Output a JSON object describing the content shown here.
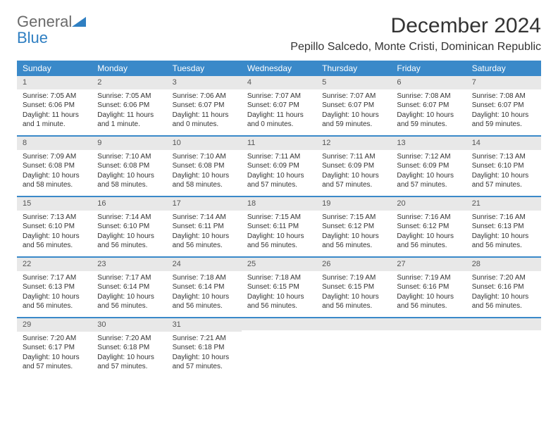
{
  "logo": {
    "general": "General",
    "blue": "Blue"
  },
  "title": "December 2024",
  "location": "Pepillo Salcedo, Monte Cristi, Dominican Republic",
  "colors": {
    "header_bg": "#3a89c9",
    "header_text": "#ffffff",
    "daynum_bg": "#e8e8e8",
    "week_border": "#3a89c9",
    "text": "#333333",
    "logo_gray": "#6a6a6a",
    "logo_blue": "#2f7fc2"
  },
  "dayNames": [
    "Sunday",
    "Monday",
    "Tuesday",
    "Wednesday",
    "Thursday",
    "Friday",
    "Saturday"
  ],
  "weeks": [
    [
      {
        "n": "1",
        "sr": "Sunrise: 7:05 AM",
        "ss": "Sunset: 6:06 PM",
        "d1": "Daylight: 11 hours",
        "d2": "and 1 minute."
      },
      {
        "n": "2",
        "sr": "Sunrise: 7:05 AM",
        "ss": "Sunset: 6:06 PM",
        "d1": "Daylight: 11 hours",
        "d2": "and 1 minute."
      },
      {
        "n": "3",
        "sr": "Sunrise: 7:06 AM",
        "ss": "Sunset: 6:07 PM",
        "d1": "Daylight: 11 hours",
        "d2": "and 0 minutes."
      },
      {
        "n": "4",
        "sr": "Sunrise: 7:07 AM",
        "ss": "Sunset: 6:07 PM",
        "d1": "Daylight: 11 hours",
        "d2": "and 0 minutes."
      },
      {
        "n": "5",
        "sr": "Sunrise: 7:07 AM",
        "ss": "Sunset: 6:07 PM",
        "d1": "Daylight: 10 hours",
        "d2": "and 59 minutes."
      },
      {
        "n": "6",
        "sr": "Sunrise: 7:08 AM",
        "ss": "Sunset: 6:07 PM",
        "d1": "Daylight: 10 hours",
        "d2": "and 59 minutes."
      },
      {
        "n": "7",
        "sr": "Sunrise: 7:08 AM",
        "ss": "Sunset: 6:07 PM",
        "d1": "Daylight: 10 hours",
        "d2": "and 59 minutes."
      }
    ],
    [
      {
        "n": "8",
        "sr": "Sunrise: 7:09 AM",
        "ss": "Sunset: 6:08 PM",
        "d1": "Daylight: 10 hours",
        "d2": "and 58 minutes."
      },
      {
        "n": "9",
        "sr": "Sunrise: 7:10 AM",
        "ss": "Sunset: 6:08 PM",
        "d1": "Daylight: 10 hours",
        "d2": "and 58 minutes."
      },
      {
        "n": "10",
        "sr": "Sunrise: 7:10 AM",
        "ss": "Sunset: 6:08 PM",
        "d1": "Daylight: 10 hours",
        "d2": "and 58 minutes."
      },
      {
        "n": "11",
        "sr": "Sunrise: 7:11 AM",
        "ss": "Sunset: 6:09 PM",
        "d1": "Daylight: 10 hours",
        "d2": "and 57 minutes."
      },
      {
        "n": "12",
        "sr": "Sunrise: 7:11 AM",
        "ss": "Sunset: 6:09 PM",
        "d1": "Daylight: 10 hours",
        "d2": "and 57 minutes."
      },
      {
        "n": "13",
        "sr": "Sunrise: 7:12 AM",
        "ss": "Sunset: 6:09 PM",
        "d1": "Daylight: 10 hours",
        "d2": "and 57 minutes."
      },
      {
        "n": "14",
        "sr": "Sunrise: 7:13 AM",
        "ss": "Sunset: 6:10 PM",
        "d1": "Daylight: 10 hours",
        "d2": "and 57 minutes."
      }
    ],
    [
      {
        "n": "15",
        "sr": "Sunrise: 7:13 AM",
        "ss": "Sunset: 6:10 PM",
        "d1": "Daylight: 10 hours",
        "d2": "and 56 minutes."
      },
      {
        "n": "16",
        "sr": "Sunrise: 7:14 AM",
        "ss": "Sunset: 6:10 PM",
        "d1": "Daylight: 10 hours",
        "d2": "and 56 minutes."
      },
      {
        "n": "17",
        "sr": "Sunrise: 7:14 AM",
        "ss": "Sunset: 6:11 PM",
        "d1": "Daylight: 10 hours",
        "d2": "and 56 minutes."
      },
      {
        "n": "18",
        "sr": "Sunrise: 7:15 AM",
        "ss": "Sunset: 6:11 PM",
        "d1": "Daylight: 10 hours",
        "d2": "and 56 minutes."
      },
      {
        "n": "19",
        "sr": "Sunrise: 7:15 AM",
        "ss": "Sunset: 6:12 PM",
        "d1": "Daylight: 10 hours",
        "d2": "and 56 minutes."
      },
      {
        "n": "20",
        "sr": "Sunrise: 7:16 AM",
        "ss": "Sunset: 6:12 PM",
        "d1": "Daylight: 10 hours",
        "d2": "and 56 minutes."
      },
      {
        "n": "21",
        "sr": "Sunrise: 7:16 AM",
        "ss": "Sunset: 6:13 PM",
        "d1": "Daylight: 10 hours",
        "d2": "and 56 minutes."
      }
    ],
    [
      {
        "n": "22",
        "sr": "Sunrise: 7:17 AM",
        "ss": "Sunset: 6:13 PM",
        "d1": "Daylight: 10 hours",
        "d2": "and 56 minutes."
      },
      {
        "n": "23",
        "sr": "Sunrise: 7:17 AM",
        "ss": "Sunset: 6:14 PM",
        "d1": "Daylight: 10 hours",
        "d2": "and 56 minutes."
      },
      {
        "n": "24",
        "sr": "Sunrise: 7:18 AM",
        "ss": "Sunset: 6:14 PM",
        "d1": "Daylight: 10 hours",
        "d2": "and 56 minutes."
      },
      {
        "n": "25",
        "sr": "Sunrise: 7:18 AM",
        "ss": "Sunset: 6:15 PM",
        "d1": "Daylight: 10 hours",
        "d2": "and 56 minutes."
      },
      {
        "n": "26",
        "sr": "Sunrise: 7:19 AM",
        "ss": "Sunset: 6:15 PM",
        "d1": "Daylight: 10 hours",
        "d2": "and 56 minutes."
      },
      {
        "n": "27",
        "sr": "Sunrise: 7:19 AM",
        "ss": "Sunset: 6:16 PM",
        "d1": "Daylight: 10 hours",
        "d2": "and 56 minutes."
      },
      {
        "n": "28",
        "sr": "Sunrise: 7:20 AM",
        "ss": "Sunset: 6:16 PM",
        "d1": "Daylight: 10 hours",
        "d2": "and 56 minutes."
      }
    ],
    [
      {
        "n": "29",
        "sr": "Sunrise: 7:20 AM",
        "ss": "Sunset: 6:17 PM",
        "d1": "Daylight: 10 hours",
        "d2": "and 57 minutes."
      },
      {
        "n": "30",
        "sr": "Sunrise: 7:20 AM",
        "ss": "Sunset: 6:18 PM",
        "d1": "Daylight: 10 hours",
        "d2": "and 57 minutes."
      },
      {
        "n": "31",
        "sr": "Sunrise: 7:21 AM",
        "ss": "Sunset: 6:18 PM",
        "d1": "Daylight: 10 hours",
        "d2": "and 57 minutes."
      },
      {
        "empty": true
      },
      {
        "empty": true
      },
      {
        "empty": true
      },
      {
        "empty": true
      }
    ]
  ]
}
